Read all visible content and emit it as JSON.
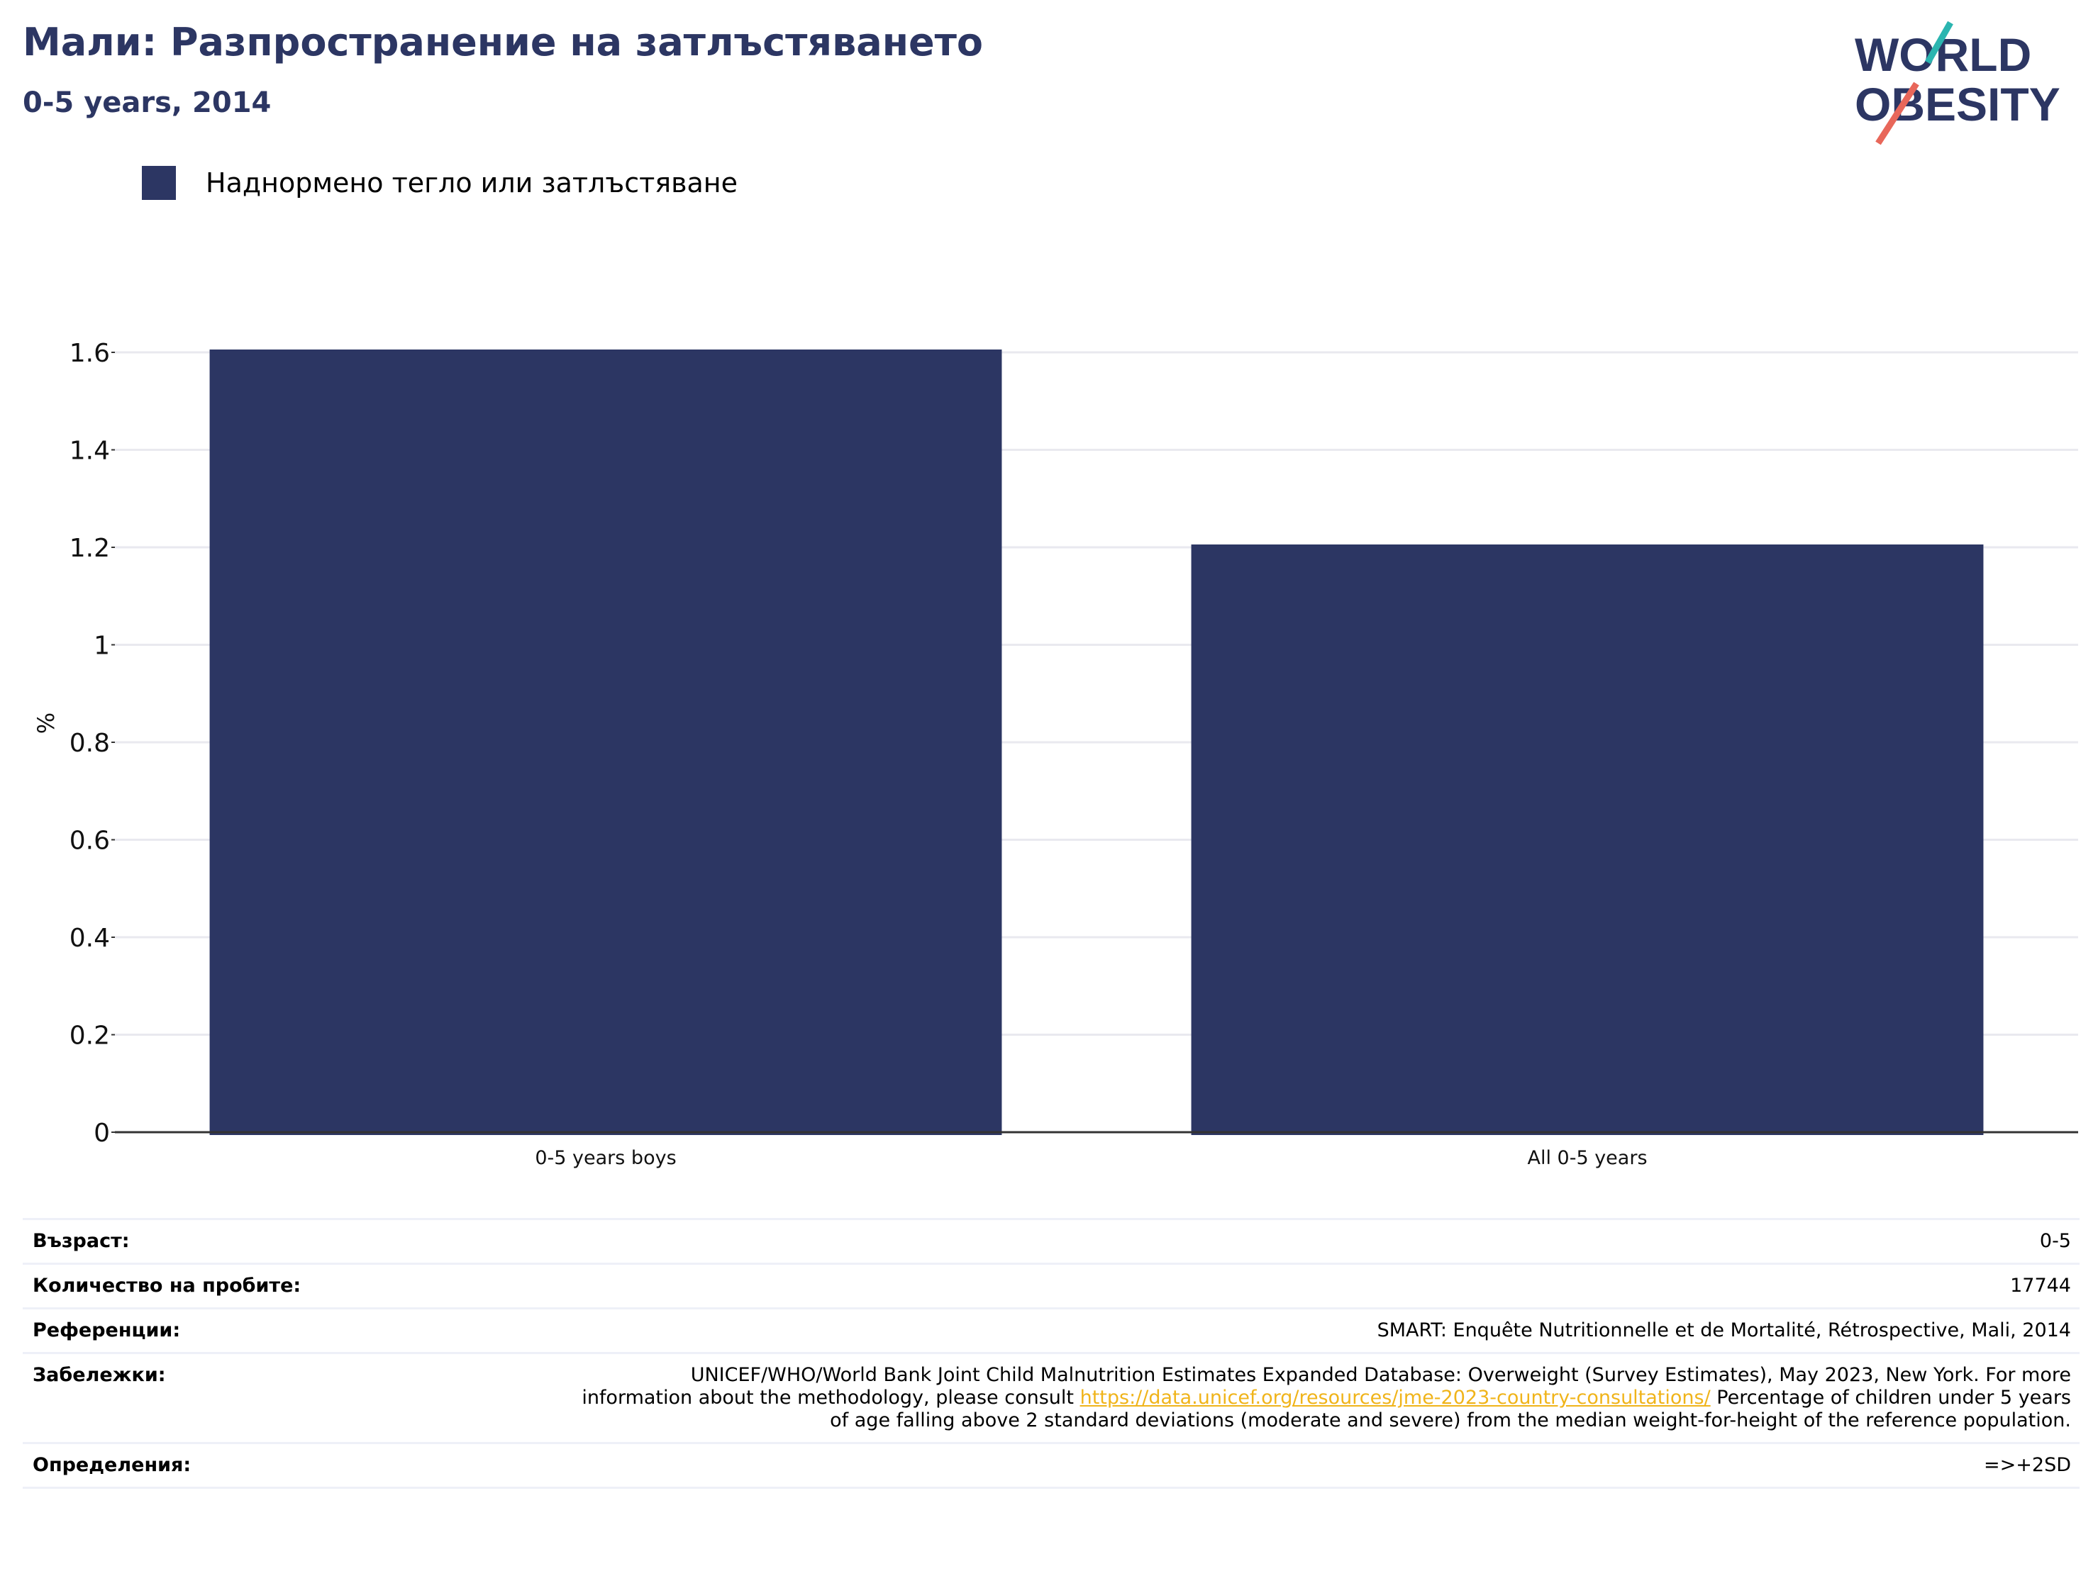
{
  "header": {
    "title": "Мали: Разпространение на затлъстяването",
    "subtitle": "0-5 years, 2014"
  },
  "logo": {
    "line1": "WORLD",
    "line2": "OBESITY",
    "colors": {
      "text": "#2c3663",
      "slash_top": "#2bb5b0",
      "slash_bottom": "#e8675a"
    }
  },
  "legend": {
    "items": [
      {
        "label": "Наднормено тегло или затлъстяване",
        "color": "#2c3663"
      }
    ]
  },
  "chart_data": {
    "type": "bar",
    "categories": [
      "0-5 years boys",
      "All 0-5 years"
    ],
    "series": [
      {
        "name": "Наднормено тегло или затлъстяване",
        "values": [
          1.6,
          1.2
        ],
        "color": "#2c3663"
      }
    ],
    "ylabel": "%",
    "ylim": [
      0,
      1.6
    ],
    "yticks": [
      0,
      0.2,
      0.4,
      0.6,
      0.8,
      1,
      1.2,
      1.4,
      1.6
    ],
    "ytick_labels": [
      "0",
      "0.2",
      "0.4",
      "0.6",
      "0.8",
      "1",
      "1.2",
      "1.4",
      "1.6"
    ],
    "grid": true,
    "legend_position": "top-left"
  },
  "info": {
    "age_label": "Възраст:",
    "age_value": "0-5",
    "sample_label": "Количество на пробите:",
    "sample_value": "17744",
    "refs_label": "Референции:",
    "refs_value": "SMART: Enquête Nutritionnelle et de Mortalité, Rétrospective, Mali, 2014",
    "notes_label": "Забележки:",
    "notes_text_1": "UNICEF/WHO/World Bank Joint Child Malnutrition Estimates Expanded Database: Overweight (Survey Estimates), May 2023, New York. For more information about the methodology, please consult ",
    "notes_link": "https://data.unicef.org/resources/jme-2023-country-consultations/",
    "notes_text_2": " Percentage of children under 5 years of age falling above 2 standard deviations (moderate and severe) from the median weight-for-height of the reference population.",
    "defs_label": "Определения:",
    "defs_value": "=>+2SD"
  }
}
